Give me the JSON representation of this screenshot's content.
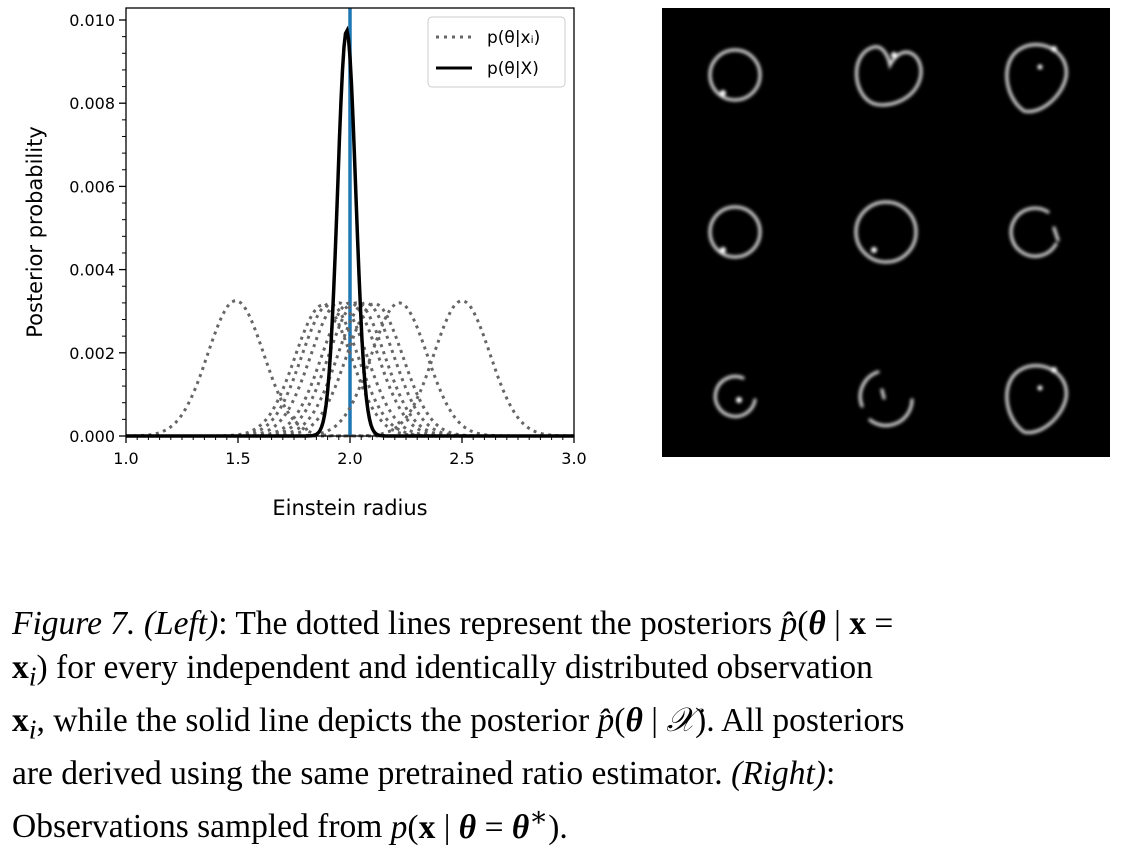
{
  "chart_data": {
    "type": "line",
    "xlabel": "Einstein radius",
    "ylabel": "Posterior probability",
    "xlim": [
      1.0,
      3.0
    ],
    "ylim": [
      0.0,
      0.01
    ],
    "xticks": [
      "1.0",
      "1.5",
      "2.0",
      "2.5",
      "3.0"
    ],
    "yticks": [
      "0.000",
      "0.002",
      "0.004",
      "0.006",
      "0.008",
      "0.010"
    ],
    "legend": {
      "placement": "top-right",
      "entries": [
        "p(θ|xᵢ)",
        "p(θ|X)"
      ]
    },
    "true_value": 2.0,
    "series": [
      {
        "name": "p(θ|xᵢ)",
        "style": "dotted",
        "gaussians": [
          {
            "mean": 1.49,
            "std": 0.125,
            "peak": 0.00325
          },
          {
            "mean": 1.88,
            "std": 0.125,
            "peak": 0.00315
          },
          {
            "mean": 1.91,
            "std": 0.125,
            "peak": 0.00318
          },
          {
            "mean": 1.95,
            "std": 0.125,
            "peak": 0.0032
          },
          {
            "mean": 2.0,
            "std": 0.125,
            "peak": 0.0032
          },
          {
            "mean": 2.03,
            "std": 0.125,
            "peak": 0.0032
          },
          {
            "mean": 2.07,
            "std": 0.125,
            "peak": 0.0032
          },
          {
            "mean": 2.11,
            "std": 0.125,
            "peak": 0.00318
          },
          {
            "mean": 2.22,
            "std": 0.125,
            "peak": 0.0032
          },
          {
            "mean": 2.5,
            "std": 0.125,
            "peak": 0.00325
          }
        ]
      },
      {
        "name": "p(θ|X)",
        "style": "solid",
        "gaussians": [
          {
            "mean": 1.985,
            "std": 0.0405,
            "peak": 0.00975
          }
        ]
      }
    ]
  },
  "observations": {
    "rings": [
      {
        "shape": "ring"
      },
      {
        "shape": "heart"
      },
      {
        "shape": "drop"
      },
      {
        "shape": "ring"
      },
      {
        "shape": "ring"
      },
      {
        "shape": "partial"
      },
      {
        "shape": "small"
      },
      {
        "shape": "broken"
      },
      {
        "shape": "drop"
      }
    ]
  },
  "caption": {
    "label": "Figure 7.",
    "left": "(Left)",
    "line1_text": ": The dotted lines represent the posteriors ",
    "line2_text": ") for every independent and identically distributed observation",
    "line3_text": ", while the solid line depicts the posterior ",
    "line3_end": ". All posteriors",
    "line4_text": "are derived using the same pretrained ratio estimator.",
    "right": "(Right)",
    "line5_text": "Observations sampled from ",
    "colors": {
      "text": "#000000"
    }
  }
}
